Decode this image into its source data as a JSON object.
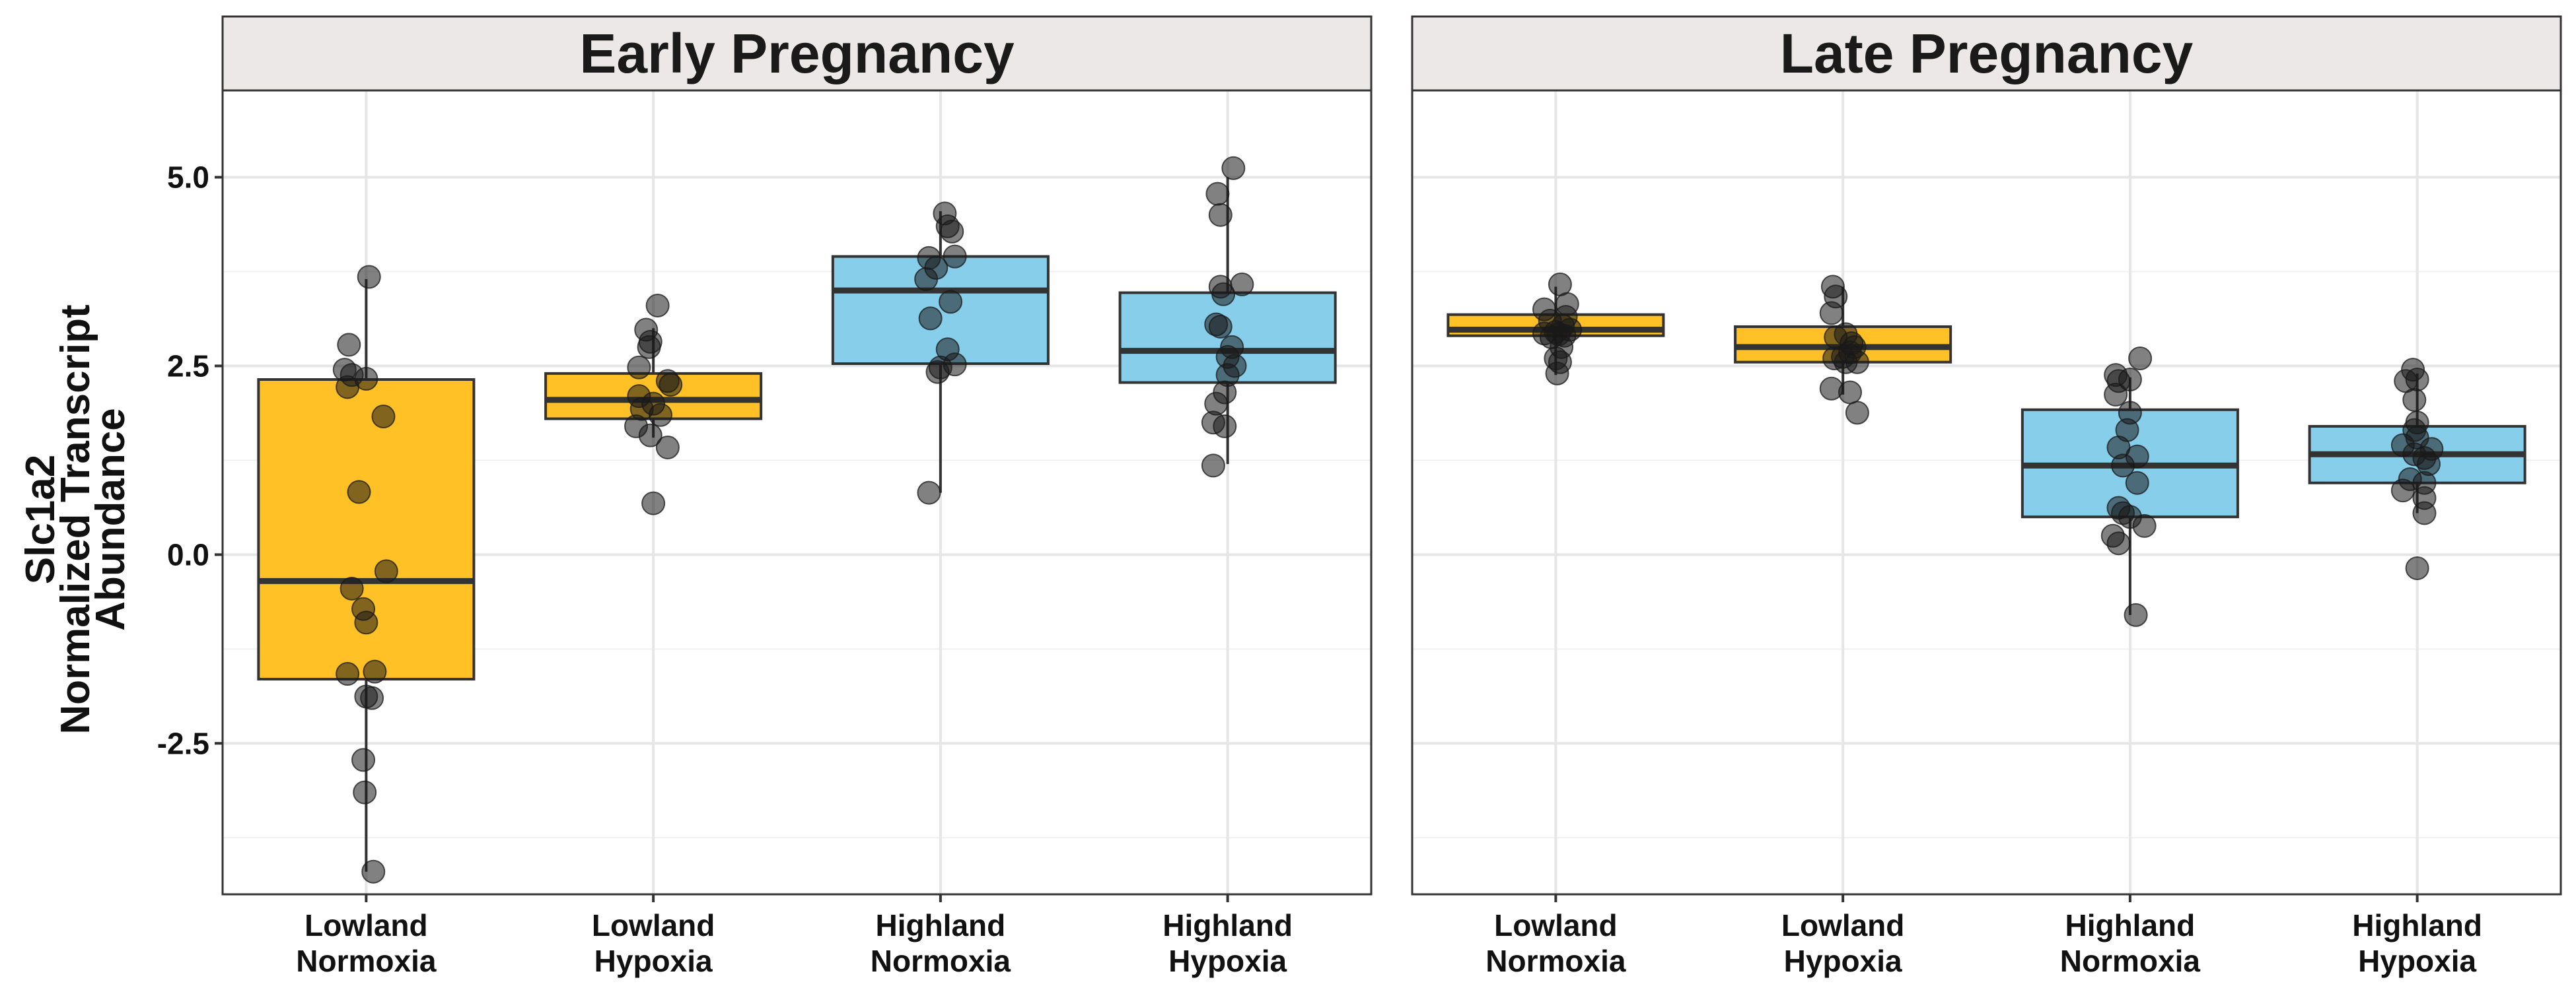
{
  "chart_data": {
    "type": "boxplot",
    "ylabel_lines": [
      "Slc1a2",
      "Normalized Transcript",
      "Abundance"
    ],
    "ylim": [
      -4.5,
      6.15
    ],
    "yticks": [
      5.0,
      2.5,
      0.0,
      -2.5
    ],
    "ytick_labels": [
      "5.0",
      "2.5",
      "0.0",
      "-2.5"
    ],
    "y_gridlines_minor": [
      3.75,
      1.25,
      -1.25,
      -3.75
    ],
    "grid": true,
    "categories": [
      [
        "Lowland",
        "Normoxia"
      ],
      [
        "Lowland",
        "Hypoxia"
      ],
      [
        "Highland",
        "Normoxia"
      ],
      [
        "Highland",
        "Hypoxia"
      ]
    ],
    "colors": {
      "lowland": "#ffc125",
      "highland": "#87ceeb",
      "points": "#1a1a1a",
      "strip_bg": "#ece8e8",
      "grid": "#e6e6e6",
      "frame": "#333333"
    },
    "box_fill_keys": [
      "lowland",
      "lowland",
      "highland",
      "highland"
    ],
    "panels": [
      {
        "title": "Early Pregnancy",
        "boxes": [
          {
            "q1": -1.65,
            "median": -0.35,
            "q3": 2.32,
            "whisker_low": -4.2,
            "whisker_high": 3.65,
            "points": [
              [
                0.02,
                3.68
              ],
              [
                -0.12,
                2.78
              ],
              [
                -0.15,
                2.45
              ],
              [
                -0.1,
                2.38
              ],
              [
                0.0,
                2.33
              ],
              [
                -0.13,
                2.22
              ],
              [
                0.12,
                1.83
              ],
              [
                -0.05,
                0.83
              ],
              [
                0.14,
                -0.22
              ],
              [
                -0.1,
                -0.45
              ],
              [
                -0.02,
                -0.72
              ],
              [
                0.0,
                -0.9
              ],
              [
                0.06,
                -1.55
              ],
              [
                -0.13,
                -1.58
              ],
              [
                0.0,
                -1.88
              ],
              [
                0.04,
                -1.9
              ],
              [
                -0.02,
                -2.72
              ],
              [
                -0.01,
                -3.15
              ],
              [
                0.05,
                -4.2
              ]
            ]
          },
          {
            "q1": 1.8,
            "median": 2.05,
            "q3": 2.4,
            "whisker_low": 1.55,
            "whisker_high": 3.0,
            "points": [
              [
                0.03,
                3.3
              ],
              [
                -0.05,
                2.98
              ],
              [
                -0.02,
                2.82
              ],
              [
                -0.03,
                2.75
              ],
              [
                -0.1,
                2.48
              ],
              [
                0.1,
                2.3
              ],
              [
                0.12,
                2.25
              ],
              [
                -0.1,
                2.1
              ],
              [
                0.0,
                2.0
              ],
              [
                -0.08,
                1.93
              ],
              [
                0.05,
                1.85
              ],
              [
                -0.12,
                1.7
              ],
              [
                -0.02,
                1.58
              ],
              [
                0.1,
                1.42
              ],
              [
                0.0,
                0.68
              ]
            ]
          },
          {
            "q1": 2.53,
            "median": 3.5,
            "q3": 3.95,
            "whisker_low": 0.82,
            "whisker_high": 4.55,
            "points": [
              [
                0.03,
                4.52
              ],
              [
                0.05,
                4.35
              ],
              [
                0.08,
                4.28
              ],
              [
                -0.08,
                3.93
              ],
              [
                0.1,
                3.95
              ],
              [
                -0.03,
                3.8
              ],
              [
                -0.1,
                3.65
              ],
              [
                0.07,
                3.35
              ],
              [
                -0.07,
                3.13
              ],
              [
                0.05,
                2.72
              ],
              [
                0.1,
                2.52
              ],
              [
                0.0,
                2.48
              ],
              [
                -0.02,
                2.42
              ],
              [
                -0.08,
                0.82
              ]
            ]
          },
          {
            "q1": 2.28,
            "median": 2.7,
            "q3": 3.47,
            "whisker_low": 1.2,
            "whisker_high": 5.0,
            "points": [
              [
                0.04,
                5.12
              ],
              [
                -0.07,
                4.78
              ],
              [
                -0.05,
                4.5
              ],
              [
                0.1,
                3.58
              ],
              [
                -0.05,
                3.55
              ],
              [
                -0.03,
                3.45
              ],
              [
                -0.08,
                3.05
              ],
              [
                -0.05,
                3.02
              ],
              [
                0.03,
                2.75
              ],
              [
                0.0,
                2.62
              ],
              [
                0.05,
                2.5
              ],
              [
                0.0,
                2.38
              ],
              [
                -0.02,
                2.15
              ],
              [
                -0.08,
                2.0
              ],
              [
                -0.1,
                1.75
              ],
              [
                -0.02,
                1.7
              ],
              [
                -0.1,
                1.18
              ]
            ]
          }
        ]
      },
      {
        "title": "Late Pregnancy",
        "boxes": [
          {
            "q1": 2.9,
            "median": 2.98,
            "q3": 3.18,
            "whisker_low": 2.38,
            "whisker_high": 3.55,
            "points": [
              [
                0.03,
                3.58
              ],
              [
                0.08,
                3.32
              ],
              [
                -0.08,
                3.25
              ],
              [
                0.07,
                3.15
              ],
              [
                -0.04,
                3.1
              ],
              [
                0.05,
                3.03
              ],
              [
                0.1,
                2.98
              ],
              [
                0.0,
                2.95
              ],
              [
                -0.08,
                2.93
              ],
              [
                0.02,
                2.92
              ],
              [
                0.06,
                2.9
              ],
              [
                -0.03,
                2.88
              ],
              [
                0.04,
                2.75
              ],
              [
                0.0,
                2.6
              ],
              [
                0.03,
                2.55
              ],
              [
                0.01,
                2.4
              ]
            ]
          },
          {
            "q1": 2.55,
            "median": 2.75,
            "q3": 3.02,
            "whisker_low": 2.12,
            "whisker_high": 3.55,
            "points": [
              [
                -0.07,
                3.55
              ],
              [
                -0.05,
                3.42
              ],
              [
                -0.08,
                3.2
              ],
              [
                0.02,
                2.92
              ],
              [
                -0.05,
                2.88
              ],
              [
                0.06,
                2.8
              ],
              [
                0.08,
                2.75
              ],
              [
                0.05,
                2.68
              ],
              [
                0.0,
                2.62
              ],
              [
                -0.06,
                2.6
              ],
              [
                0.02,
                2.55
              ],
              [
                0.1,
                2.55
              ],
              [
                -0.08,
                2.2
              ],
              [
                0.05,
                2.15
              ],
              [
                0.1,
                1.88
              ]
            ]
          },
          {
            "q1": 0.5,
            "median": 1.18,
            "q3": 1.92,
            "whisker_low": -0.8,
            "whisker_high": 2.35,
            "points": [
              [
                0.07,
                2.6
              ],
              [
                -0.1,
                2.38
              ],
              [
                -0.08,
                2.3
              ],
              [
                0.0,
                2.32
              ],
              [
                -0.1,
                2.12
              ],
              [
                0.0,
                1.88
              ],
              [
                -0.02,
                1.65
              ],
              [
                -0.08,
                1.42
              ],
              [
                0.05,
                1.3
              ],
              [
                -0.05,
                1.18
              ],
              [
                0.05,
                0.95
              ],
              [
                -0.08,
                0.62
              ],
              [
                -0.05,
                0.55
              ],
              [
                0.0,
                0.5
              ],
              [
                0.1,
                0.38
              ],
              [
                -0.12,
                0.25
              ],
              [
                -0.08,
                0.15
              ],
              [
                0.04,
                -0.8
              ]
            ]
          },
          {
            "q1": 0.95,
            "median": 1.33,
            "q3": 1.7,
            "whisker_low": 0.55,
            "whisker_high": 2.4,
            "points": [
              [
                -0.03,
                2.45
              ],
              [
                -0.08,
                2.3
              ],
              [
                0.0,
                2.32
              ],
              [
                -0.02,
                2.05
              ],
              [
                0.0,
                1.75
              ],
              [
                -0.02,
                1.65
              ],
              [
                0.0,
                1.55
              ],
              [
                -0.1,
                1.45
              ],
              [
                0.1,
                1.4
              ],
              [
                -0.02,
                1.33
              ],
              [
                0.05,
                1.28
              ],
              [
                0.08,
                1.2
              ],
              [
                -0.05,
                1.0
              ],
              [
                0.05,
                0.95
              ],
              [
                -0.1,
                0.85
              ],
              [
                0.05,
                0.75
              ],
              [
                0.05,
                0.55
              ],
              [
                0.0,
                -0.18
              ]
            ]
          }
        ]
      }
    ]
  }
}
